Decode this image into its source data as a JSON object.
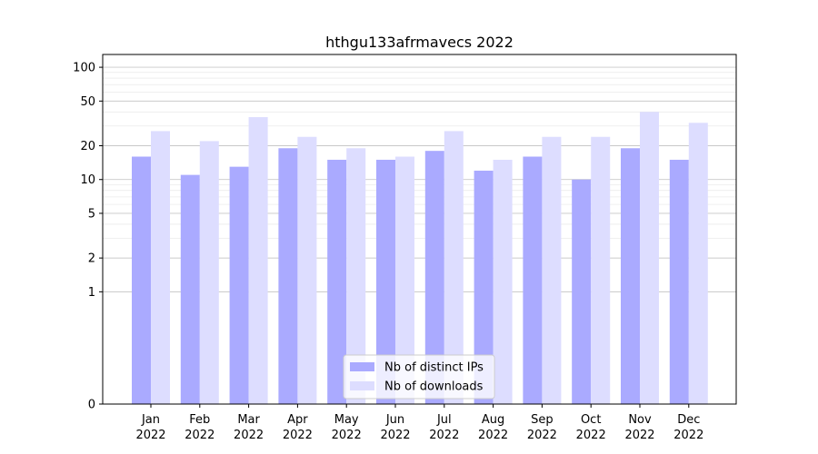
{
  "chart_data": {
    "type": "bar",
    "title": "hthgu133afrmavecs 2022",
    "xlabel": "",
    "ylabel": "",
    "yscale": "symlog",
    "ylim": [
      0,
      130
    ],
    "yticks": [
      0,
      1,
      2,
      5,
      10,
      20,
      50,
      100
    ],
    "ytick_labels": [
      "0",
      "1",
      "2",
      "5",
      "10",
      "20",
      "50",
      "100"
    ],
    "categories": [
      [
        "Jan",
        "2022"
      ],
      [
        "Feb",
        "2022"
      ],
      [
        "Mar",
        "2022"
      ],
      [
        "Apr",
        "2022"
      ],
      [
        "May",
        "2022"
      ],
      [
        "Jun",
        "2022"
      ],
      [
        "Jul",
        "2022"
      ],
      [
        "Aug",
        "2022"
      ],
      [
        "Sep",
        "2022"
      ],
      [
        "Oct",
        "2022"
      ],
      [
        "Nov",
        "2022"
      ],
      [
        "Dec",
        "2022"
      ]
    ],
    "series": [
      {
        "name": "Nb of distinct IPs",
        "color": "#aaaaff",
        "values": [
          16,
          11,
          13,
          19,
          15,
          15,
          18,
          12,
          16,
          10,
          19,
          15
        ]
      },
      {
        "name": "Nb of downloads",
        "color": "#ddddff",
        "values": [
          27,
          22,
          36,
          24,
          19,
          16,
          27,
          15,
          24,
          24,
          40,
          32
        ]
      }
    ],
    "legend_position": "lower center",
    "grid": true
  }
}
